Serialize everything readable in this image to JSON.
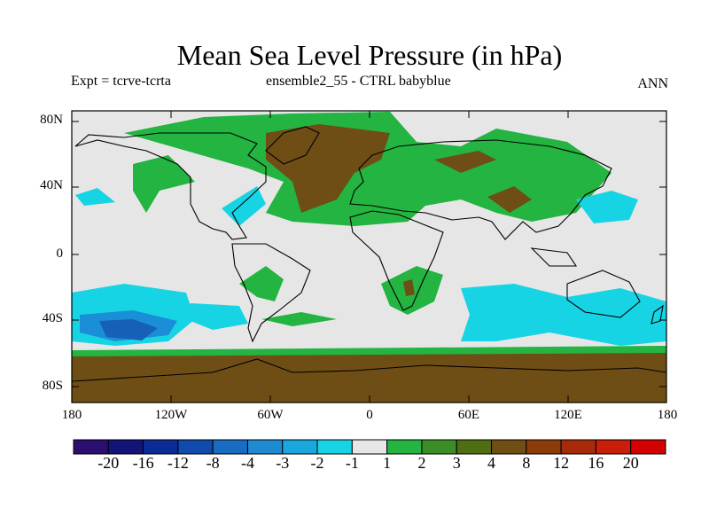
{
  "title": "Mean Sea Level Pressure (in hPa)",
  "subtitle_left": "Expt = tcrve-tcrta",
  "subtitle_center": "ensemble2_55 - CTRL babyblue",
  "season": "ANN",
  "lat_ticks": [
    "80N",
    "40N",
    "0",
    "40S",
    "80S"
  ],
  "lon_ticks": [
    "180",
    "120W",
    "60W",
    "0",
    "60E",
    "120E",
    "180"
  ],
  "colorbar": {
    "labels": [
      "-20",
      "-16",
      "-12",
      "-8",
      "-4",
      "-3",
      "-2",
      "-1",
      "1",
      "2",
      "3",
      "4",
      "8",
      "12",
      "16",
      "20"
    ],
    "colors": [
      "#2a0f6e",
      "#141478",
      "#0b2c96",
      "#0f4aac",
      "#1a6cc2",
      "#1e8ad2",
      "#19a8dd",
      "#17d4e4",
      "#e6e6e6",
      "#23b441",
      "#3c8c28",
      "#4f6e14",
      "#6e4e14",
      "#8a3c0a",
      "#a82a0a",
      "#c81e0a",
      "#d20000"
    ]
  },
  "map_colors": {
    "ocean": "#e6e6e6",
    "pos1": "#23b441",
    "pos2": "#6e4e14",
    "pos3": "#705010",
    "neg1": "#17d4e4",
    "neg2": "#1a8ed6",
    "neg3": "#1660b8"
  }
}
